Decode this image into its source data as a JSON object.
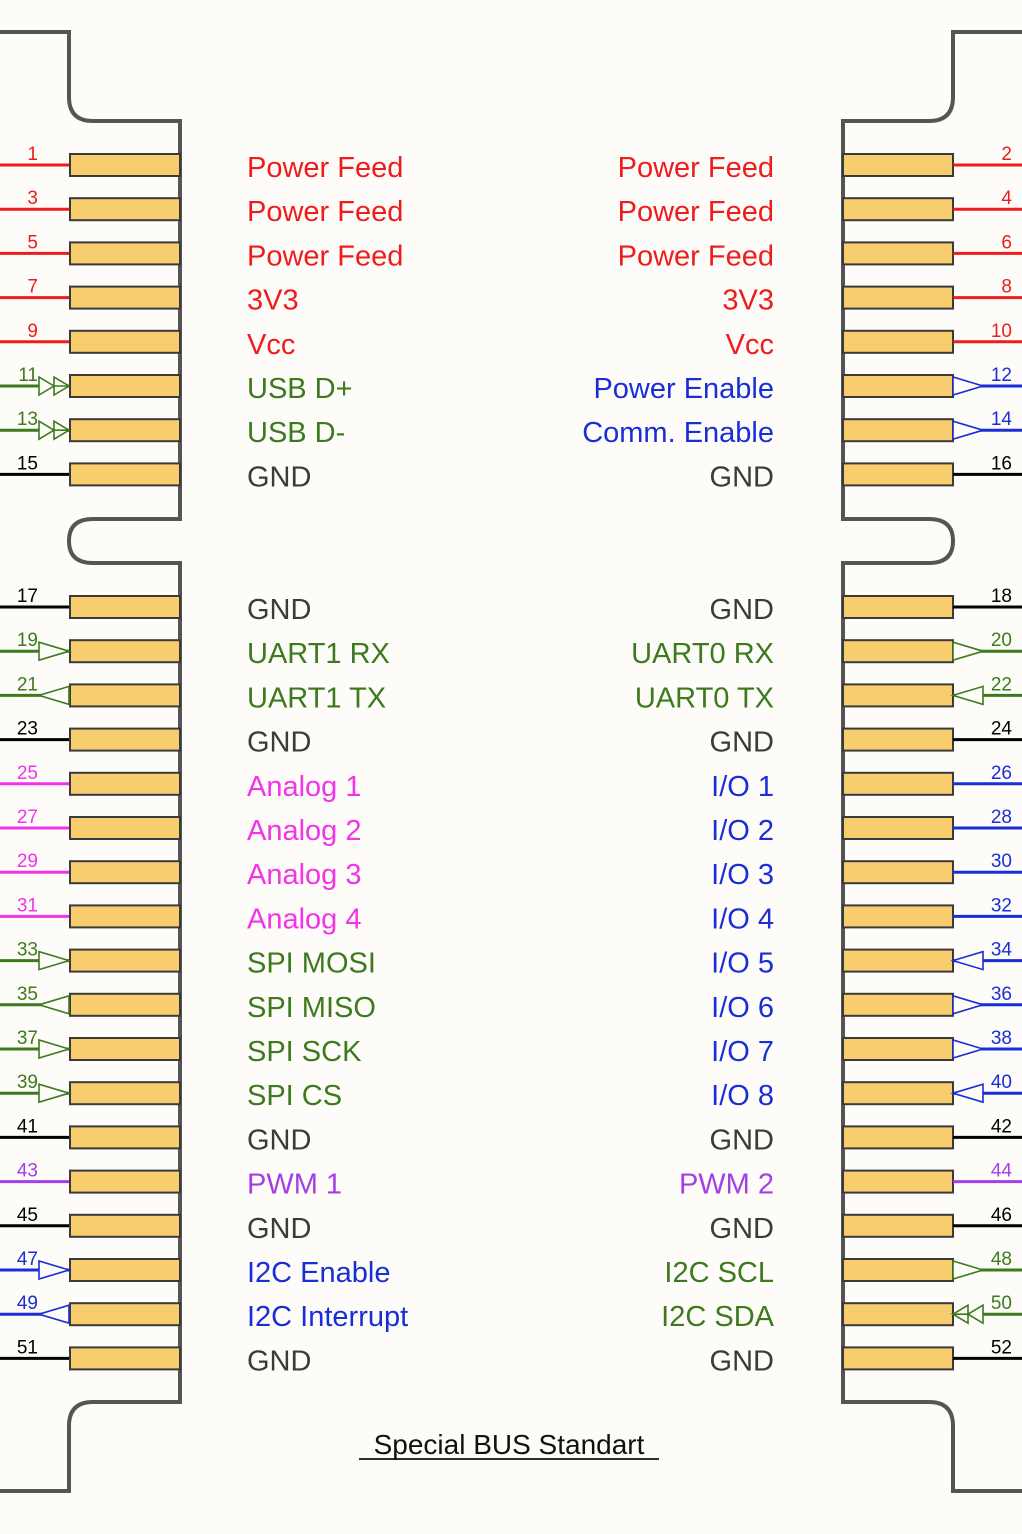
{
  "title": "Special BUS Standart",
  "colors": {
    "power": "#ee1c1c",
    "data": "#3d7a1e",
    "control": "#1a2ed8",
    "ground": "#000000",
    "ground_label": "#3b3b3b",
    "analog": "#f233e8",
    "pwm": "#a43ee6"
  },
  "left_pins": [
    {
      "num": "1",
      "label": "Power Feed",
      "type": "power",
      "io": "none"
    },
    {
      "num": "3",
      "label": "Power Feed",
      "type": "power",
      "io": "none"
    },
    {
      "num": "5",
      "label": "Power Feed",
      "type": "power",
      "io": "none"
    },
    {
      "num": "7",
      "label": "3V3",
      "type": "power",
      "io": "none"
    },
    {
      "num": "9",
      "label": "Vcc",
      "type": "power",
      "io": "none"
    },
    {
      "num": "11",
      "label": "USB D+",
      "type": "data",
      "io": "bidir"
    },
    {
      "num": "13",
      "label": "USB D-",
      "type": "data",
      "io": "bidir"
    },
    {
      "num": "15",
      "label": "GND",
      "type": "ground",
      "io": "none"
    },
    {
      "num": "17",
      "label": "GND",
      "type": "ground",
      "io": "none"
    },
    {
      "num": "19",
      "label": "UART1 RX",
      "type": "data",
      "io": "out"
    },
    {
      "num": "21",
      "label": "UART1 TX",
      "type": "data",
      "io": "in"
    },
    {
      "num": "23",
      "label": "GND",
      "type": "ground",
      "io": "none"
    },
    {
      "num": "25",
      "label": "Analog 1",
      "type": "analog",
      "io": "none"
    },
    {
      "num": "27",
      "label": "Analog 2",
      "type": "analog",
      "io": "none"
    },
    {
      "num": "29",
      "label": "Analog 3",
      "type": "analog",
      "io": "none"
    },
    {
      "num": "31",
      "label": "Analog 4",
      "type": "analog",
      "io": "none"
    },
    {
      "num": "33",
      "label": "SPI MOSI",
      "type": "data",
      "io": "out"
    },
    {
      "num": "35",
      "label": "SPI MISO",
      "type": "data",
      "io": "in"
    },
    {
      "num": "37",
      "label": "SPI SCK",
      "type": "data",
      "io": "out"
    },
    {
      "num": "39",
      "label": "SPI CS",
      "type": "data",
      "io": "out"
    },
    {
      "num": "41",
      "label": "GND",
      "type": "ground",
      "io": "none"
    },
    {
      "num": "43",
      "label": "PWM 1",
      "type": "pwm",
      "io": "none"
    },
    {
      "num": "45",
      "label": "GND",
      "type": "ground",
      "io": "none"
    },
    {
      "num": "47",
      "label": "I2C Enable",
      "type": "control",
      "io": "out"
    },
    {
      "num": "49",
      "label": "I2C Interrupt",
      "type": "control",
      "io": "in"
    },
    {
      "num": "51",
      "label": "GND",
      "type": "ground",
      "io": "none"
    }
  ],
  "right_pins": [
    {
      "num": "2",
      "label": "Power Feed",
      "type": "power",
      "io": "none"
    },
    {
      "num": "4",
      "label": "Power Feed",
      "type": "power",
      "io": "none"
    },
    {
      "num": "6",
      "label": "Power Feed",
      "type": "power",
      "io": "none"
    },
    {
      "num": "8",
      "label": "3V3",
      "type": "power",
      "io": "none"
    },
    {
      "num": "10",
      "label": "Vcc",
      "type": "power",
      "io": "none"
    },
    {
      "num": "12",
      "label": "Power Enable",
      "type": "control",
      "io": "in"
    },
    {
      "num": "14",
      "label": "Comm. Enable",
      "type": "control",
      "io": "in"
    },
    {
      "num": "16",
      "label": "GND",
      "type": "ground",
      "io": "none"
    },
    {
      "num": "18",
      "label": "GND",
      "type": "ground",
      "io": "none"
    },
    {
      "num": "20",
      "label": "UART0 RX",
      "type": "data",
      "io": "in"
    },
    {
      "num": "22",
      "label": "UART0 TX",
      "type": "data",
      "io": "out"
    },
    {
      "num": "24",
      "label": "GND",
      "type": "ground",
      "io": "none"
    },
    {
      "num": "26",
      "label": "I/O 1",
      "type": "control",
      "io": "none"
    },
    {
      "num": "28",
      "label": "I/O 2",
      "type": "control",
      "io": "none"
    },
    {
      "num": "30",
      "label": "I/O 3",
      "type": "control",
      "io": "none"
    },
    {
      "num": "32",
      "label": "I/O 4",
      "type": "control",
      "io": "none"
    },
    {
      "num": "34",
      "label": "I/O 5",
      "type": "control",
      "io": "out"
    },
    {
      "num": "36",
      "label": "I/O 6",
      "type": "control",
      "io": "in"
    },
    {
      "num": "38",
      "label": "I/O 7",
      "type": "control",
      "io": "in"
    },
    {
      "num": "40",
      "label": "I/O 8",
      "type": "control",
      "io": "out"
    },
    {
      "num": "42",
      "label": "GND",
      "type": "ground",
      "io": "none"
    },
    {
      "num": "44",
      "label": "PWM 2",
      "type": "pwm",
      "io": "none"
    },
    {
      "num": "46",
      "label": "GND",
      "type": "ground",
      "io": "none"
    },
    {
      "num": "48",
      "label": "I2C SCL",
      "type": "data",
      "io": "in"
    },
    {
      "num": "50",
      "label": "I2C SDA",
      "type": "data",
      "io": "bidir"
    },
    {
      "num": "52",
      "label": "GND",
      "type": "ground",
      "io": "none"
    }
  ]
}
